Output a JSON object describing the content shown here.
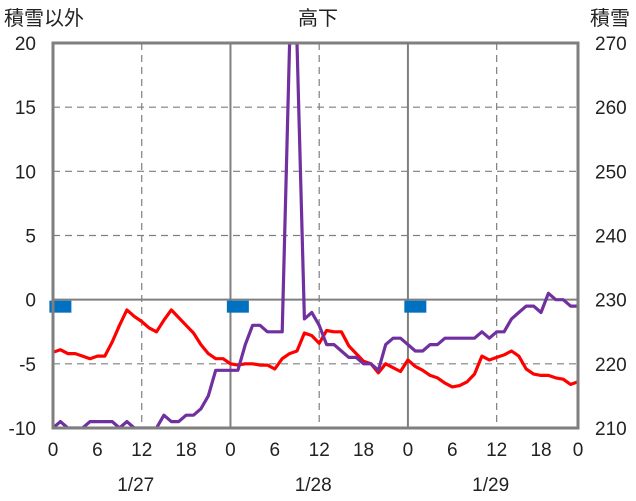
{
  "chart_data": {
    "type": "line",
    "title": "高下",
    "left_axis_label": "積雪以外",
    "right_axis_label": "積雪",
    "left_ylim": [
      -10,
      20
    ],
    "left_yticks": [
      -10,
      -5,
      0,
      5,
      10,
      15,
      20
    ],
    "right_ylim": [
      210,
      270
    ],
    "right_yticks": [
      210,
      220,
      230,
      240,
      250,
      260,
      270
    ],
    "xlim": [
      0,
      71
    ],
    "hour_ticks": [
      0,
      6,
      12,
      18,
      24,
      30,
      36,
      42,
      48,
      54,
      60,
      66,
      71
    ],
    "hour_tick_labels": [
      "0",
      "6",
      "12",
      "18",
      "0",
      "6",
      "12",
      "18",
      "0",
      "6",
      "12",
      "18",
      "0"
    ],
    "date_labels": [
      "1/27",
      "1/28",
      "1/29"
    ],
    "date_label_hours": [
      12,
      36,
      60
    ],
    "day_boundaries": [
      24,
      48
    ],
    "grid": true,
    "colors": {
      "temperature": "#ff0000",
      "purple_series": "#7030a0",
      "precip_markers": "#0070c0",
      "axis": "#7f7f7f",
      "grid": "#7f7f7f",
      "zero_line": "#7f7f7f"
    },
    "series": [
      {
        "color": "#ff0000",
        "axis": "left",
        "x": [
          0,
          1,
          2,
          3,
          4,
          5,
          6,
          7,
          8,
          9,
          10,
          11,
          12,
          13,
          14,
          15,
          16,
          17,
          18,
          19,
          20,
          21,
          22,
          23,
          24,
          25,
          26,
          27,
          28,
          29,
          30,
          31,
          32,
          33,
          34,
          35,
          36,
          37,
          38,
          39,
          40,
          41,
          42,
          43,
          44,
          45,
          46,
          47,
          48,
          49,
          50,
          51,
          52,
          53,
          54,
          55,
          56,
          57,
          58,
          59,
          60,
          61,
          62,
          63,
          64,
          65,
          66,
          67,
          68,
          69,
          70,
          71
        ],
        "values": [
          -4.1,
          -3.9,
          -4.2,
          -4.2,
          -4.4,
          -4.6,
          -4.4,
          -4.4,
          -3.3,
          -2.0,
          -0.8,
          -1.3,
          -1.7,
          -2.2,
          -2.5,
          -1.6,
          -0.8,
          -1.4,
          -2.0,
          -2.6,
          -3.5,
          -4.2,
          -4.6,
          -4.6,
          -5.0,
          -5.1,
          -5.0,
          -5.0,
          -5.1,
          -5.1,
          -5.4,
          -4.6,
          -4.2,
          -4.0,
          -2.6,
          -2.8,
          -3.4,
          -2.4,
          -2.5,
          -2.5,
          -3.6,
          -4.2,
          -4.8,
          -5.0,
          -5.7,
          -5.0,
          -5.3,
          -5.6,
          -4.7,
          -5.2,
          -5.5,
          -5.9,
          -6.1,
          -6.5,
          -6.8,
          -6.7,
          -6.4,
          -5.8,
          -4.4,
          -4.7,
          -4.5,
          -4.3,
          -4.0,
          -4.4,
          -5.4,
          -5.8,
          -5.9,
          -5.9,
          -6.1,
          -6.2,
          -6.6,
          -6.4
        ]
      },
      {
        "color": "#7030a0",
        "axis": "right",
        "x": [
          0,
          1,
          2,
          3,
          4,
          5,
          6,
          7,
          8,
          9,
          10,
          11,
          12,
          13,
          14,
          15,
          16,
          17,
          18,
          19,
          20,
          21,
          22,
          23,
          24,
          25,
          26,
          27,
          28,
          29,
          30,
          31,
          32,
          33,
          34,
          35,
          36,
          37,
          38,
          39,
          40,
          41,
          42,
          43,
          44,
          45,
          46,
          47,
          48,
          49,
          50,
          51,
          52,
          53,
          54,
          55,
          56,
          57,
          58,
          59,
          60,
          61,
          62,
          63,
          64,
          65,
          66,
          67,
          68,
          69,
          70,
          71
        ],
        "values": [
          210,
          211,
          210,
          210,
          210,
          211,
          211,
          211,
          211,
          210,
          211,
          210,
          210,
          210,
          210,
          212,
          211,
          211,
          212,
          212,
          213,
          215,
          219,
          219,
          219,
          219,
          223,
          226,
          226,
          225,
          225,
          225,
          270,
          270,
          227,
          228,
          226,
          223,
          223,
          222,
          221,
          221,
          220,
          220,
          219,
          223,
          224,
          224,
          223,
          222,
          222,
          223,
          223,
          224,
          224,
          224,
          224,
          224,
          225,
          224,
          225,
          225,
          227,
          228,
          229,
          229,
          228,
          231,
          230,
          230,
          229,
          229
        ]
      }
    ],
    "precip_marker_hours": [
      1,
      25,
      49
    ],
    "precip_marker_value": 0
  }
}
